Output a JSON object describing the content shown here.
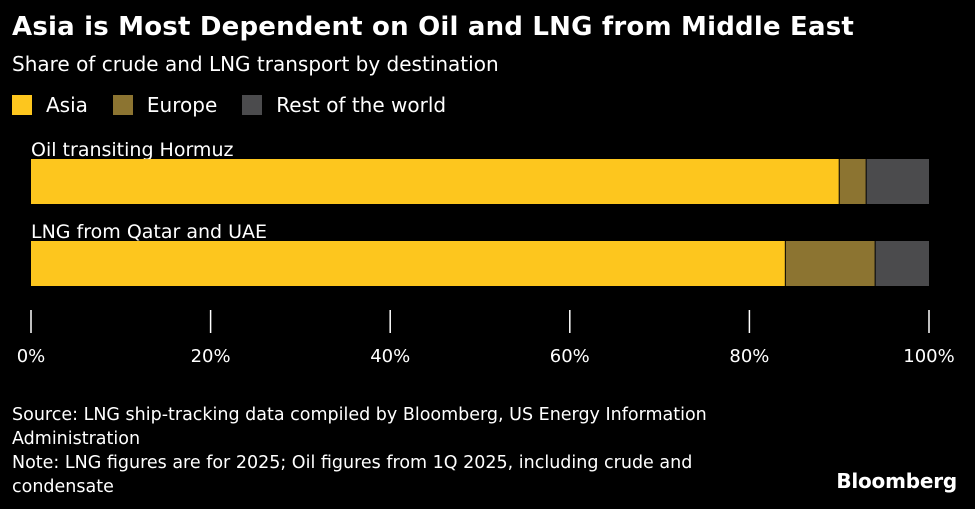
{
  "chart_data": {
    "type": "bar",
    "orientation": "horizontal",
    "stacked": true,
    "title": "Asia is Most Dependent on Oil and LNG from Middle East",
    "subtitle": "Share of crude and LNG transport by destination",
    "categories": [
      "Oil transiting Hormuz",
      "LNG from Qatar and UAE"
    ],
    "series": [
      {
        "name": "Asia",
        "color": "#fdc61e",
        "values": [
          90,
          84
        ]
      },
      {
        "name": "Europe",
        "color": "#8c7431",
        "values": [
          3,
          10
        ]
      },
      {
        "name": "Rest of the world",
        "color": "#4b4b4d",
        "values": [
          7,
          6
        ]
      }
    ],
    "xlim": [
      0,
      100
    ],
    "xticks": [
      0,
      20,
      40,
      60,
      80,
      100
    ],
    "xtick_labels": [
      "0%",
      "20%",
      "40%",
      "60%",
      "80%",
      "100%"
    ],
    "legend_position": "top-left"
  },
  "footer": {
    "source": "Source: LNG ship-tracking data compiled by Bloomberg, US Energy Information Administration",
    "note": "Note: LNG figures are for 2025; Oil figures from 1Q 2025, including crude and condensate",
    "brand": "Bloomberg"
  },
  "colors": {
    "background": "#000000",
    "text": "#ffffff",
    "axis": "#ffffff"
  }
}
